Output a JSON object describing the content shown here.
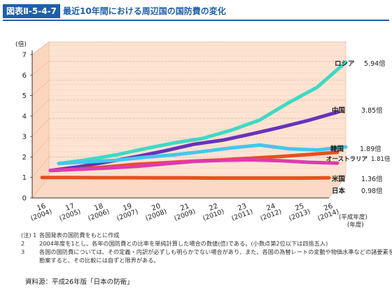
{
  "header": {
    "figure_id": "図表Ⅱ-5-4-7",
    "title": "最近10年間における周辺国の国防費の変化"
  },
  "chart_data": {
    "type": "line",
    "title": "最近10年間における周辺国の国防費の変化",
    "ylabel": "(倍)",
    "xlabel": "(平成年度)",
    "ylim": [
      0,
      7
    ],
    "y_ticks": [
      "0",
      "1",
      "2",
      "3",
      "4",
      "5",
      "6",
      "7"
    ],
    "x": [
      {
        "top": "16",
        "bottom": "(2004)"
      },
      {
        "top": "17",
        "bottom": "(2005)"
      },
      {
        "top": "18",
        "bottom": "(2006)"
      },
      {
        "top": "19",
        "bottom": "(2007)"
      },
      {
        "top": "20",
        "bottom": "(2008)"
      },
      {
        "top": "21",
        "bottom": "(2009)"
      },
      {
        "top": "22",
        "bottom": "(2010)"
      },
      {
        "top": "23",
        "bottom": "(2011)"
      },
      {
        "top": "24",
        "bottom": "(2012)"
      },
      {
        "top": "25",
        "bottom": "(2013)"
      },
      {
        "top": "26",
        "bottom": "(2014)"
      }
    ],
    "x_axis_unit_top": "(平成年度)",
    "x_axis_unit_bottom": "(年度)",
    "grid": true,
    "series": [
      {
        "name": "ロシア",
        "value_label": "5.94倍",
        "color": "#3fd9c4",
        "depth": 2,
        "values": [
          1.0,
          1.18,
          1.42,
          1.72,
          2.0,
          2.22,
          2.62,
          3.12,
          3.96,
          4.72,
          5.94
        ]
      },
      {
        "name": "中国",
        "value_label": "3.85倍",
        "color": "#6633bb",
        "depth": 1,
        "values": [
          1.0,
          1.18,
          1.42,
          1.68,
          1.96,
          2.28,
          2.48,
          2.78,
          3.1,
          3.45,
          3.85
        ]
      },
      {
        "name": "韓国",
        "value_label": "1.89倍",
        "color": "#e8501e",
        "depth": 1,
        "values": [
          1.0,
          1.07,
          1.18,
          1.3,
          1.38,
          1.46,
          1.52,
          1.6,
          1.68,
          1.78,
          1.89
        ]
      },
      {
        "name": "オーストラリア",
        "value_label": "1.81倍",
        "color": "#46c6ec",
        "depth": 2,
        "values": [
          1.0,
          1.08,
          1.16,
          1.3,
          1.42,
          1.58,
          1.76,
          1.9,
          1.72,
          1.66,
          1.81
        ]
      },
      {
        "name": "米国",
        "value_label": "1.36倍",
        "color": "#e03ab0",
        "depth": 1,
        "values": [
          1.0,
          1.06,
          1.12,
          1.2,
          1.32,
          1.44,
          1.5,
          1.52,
          1.48,
          1.4,
          1.36
        ]
      },
      {
        "name": "日本",
        "value_label": "0.98倍",
        "color": "#e8501e",
        "depth": 0,
        "values": [
          1.0,
          1.0,
          0.99,
          0.99,
          0.98,
          0.98,
          0.97,
          0.97,
          0.97,
          0.97,
          0.98
        ]
      }
    ]
  },
  "notes": [
    {
      "num": "(注) 1",
      "text": "各国発表の国防費をもとに作成"
    },
    {
      "num": "2",
      "text": "2004年度を1とし、各年の国防費との比率を単純計算した場合の数値(倍)である。(小数点第2位以下は四捨五入)"
    },
    {
      "num": "3",
      "text": "各国の国防費については、その定義・内訳が必ずしも明らかでない場合があり、また、各国の為替レートの変動や物価水準などの諸要素を"
    },
    {
      "num": "",
      "text": "勘案すると、その比較には自ずと限界がある。"
    }
  ],
  "source": "資料源：平成26年版「日本の防衛」"
}
